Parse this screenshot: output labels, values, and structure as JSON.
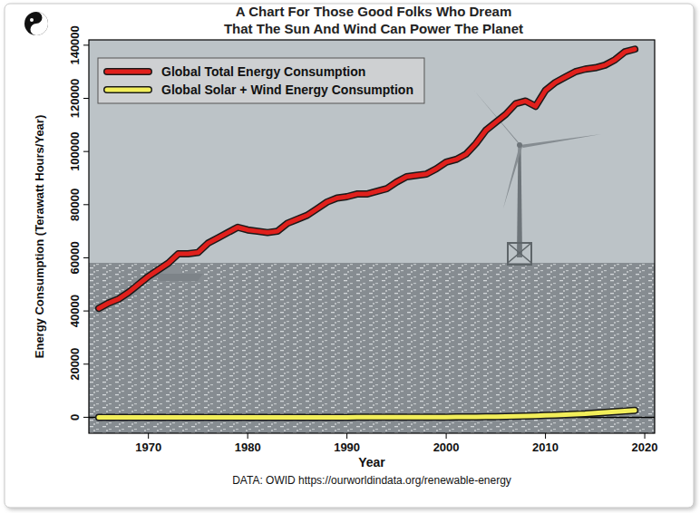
{
  "chart_data": {
    "type": "line",
    "title": [
      "A Chart For Those Good Folks Who Dream",
      "That The Sun And Wind Can Power The Planet"
    ],
    "x_label": "Year",
    "y_label": "Energy Consumption (Terawatt Hours/Year)",
    "source": "DATA: OWID https://ourworldindata.org/renewable-energy",
    "x": [
      1965,
      1966,
      1967,
      1968,
      1969,
      1970,
      1971,
      1972,
      1973,
      1974,
      1975,
      1976,
      1977,
      1978,
      1979,
      1980,
      1981,
      1982,
      1983,
      1984,
      1985,
      1986,
      1987,
      1988,
      1989,
      1990,
      1991,
      1992,
      1993,
      1994,
      1995,
      1996,
      1997,
      1998,
      1999,
      2000,
      2001,
      2002,
      2003,
      2004,
      2005,
      2006,
      2007,
      2008,
      2009,
      2010,
      2011,
      2012,
      2013,
      2014,
      2015,
      2016,
      2017,
      2018,
      2019
    ],
    "series": [
      {
        "name": "Global Total Energy Consumption",
        "color": "#e0201c",
        "values": [
          41000,
          43000,
          44500,
          47000,
          50000,
          53000,
          55500,
          58000,
          61500,
          61500,
          62000,
          65500,
          67500,
          69500,
          71500,
          70500,
          70000,
          69500,
          70000,
          73000,
          74500,
          76000,
          78500,
          81000,
          82500,
          83000,
          84000,
          84000,
          85000,
          86000,
          88500,
          90500,
          91000,
          91500,
          93500,
          96000,
          97000,
          99000,
          103000,
          108000,
          111000,
          114000,
          118000,
          119000,
          117000,
          123000,
          126000,
          128000,
          130000,
          131000,
          131500,
          132500,
          134500,
          137500,
          138500
        ]
      },
      {
        "name": "Global Solar + Wind Energy Consumption",
        "color": "#f2ee5a",
        "values": [
          0,
          0,
          0,
          0,
          0,
          0,
          0,
          0,
          0,
          0,
          0,
          0,
          0,
          0,
          0,
          0,
          0,
          0,
          0,
          0,
          0,
          0,
          0,
          0,
          0,
          10,
          12,
          15,
          20,
          25,
          30,
          35,
          45,
          55,
          70,
          80,
          100,
          120,
          150,
          190,
          250,
          300,
          380,
          470,
          560,
          700,
          850,
          1000,
          1150,
          1300,
          1600,
          1850,
          2100,
          2350,
          2600
        ]
      }
    ],
    "xlim": [
      1964,
      2021
    ],
    "xticks": [
      1970,
      1980,
      1990,
      2000,
      2010,
      2020
    ],
    "ylim": [
      -6000,
      142000
    ],
    "yticks": [
      0,
      20000,
      40000,
      60000,
      80000,
      100000,
      120000,
      140000
    ],
    "legend": "upper left",
    "grid": false
  }
}
